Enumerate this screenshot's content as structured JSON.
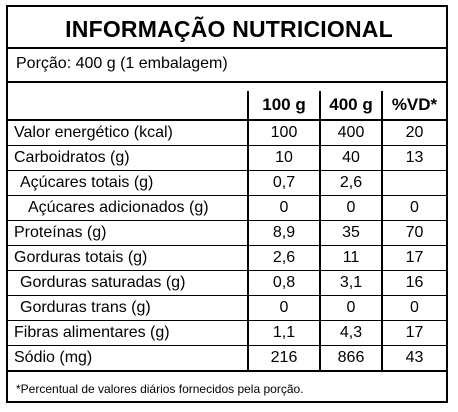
{
  "title": "INFORMAÇÃO NUTRICIONAL",
  "portion": "Porção: 400 g (1 embalagem)",
  "columns": [
    "100 g",
    "400 g",
    "%VD*"
  ],
  "rows": [
    {
      "name": "Valor energético (kcal)",
      "c100": "100",
      "c400": "400",
      "vd": "20"
    },
    {
      "name": "Carboidratos (g)",
      "c100": "10",
      "c400": "40",
      "vd": "13"
    },
    {
      "name": "Açúcares totais (g)",
      "c100": "0,7",
      "c400": "2,6",
      "vd": ""
    },
    {
      "name": "Açúcares adicionados (g)",
      "c100": "0",
      "c400": "0",
      "vd": "0"
    },
    {
      "name": "Proteínas (g)",
      "c100": "8,9",
      "c400": "35",
      "vd": "70"
    },
    {
      "name": "Gorduras totais (g)",
      "c100": "2,6",
      "c400": "11",
      "vd": "17"
    },
    {
      "name": "Gorduras saturadas (g)",
      "c100": "0,8",
      "c400": "3,1",
      "vd": "16"
    },
    {
      "name": "Gorduras trans (g)",
      "c100": "0",
      "c400": "0",
      "vd": "0"
    },
    {
      "name": "Fibras alimentares (g)",
      "c100": "1,1",
      "c400": "4,3",
      "vd": "17"
    },
    {
      "name": "Sódio (mg)",
      "c100": "216",
      "c400": "866",
      "vd": "43"
    }
  ],
  "footnote": "*Percentual de valores diários fornecidos pela porção."
}
